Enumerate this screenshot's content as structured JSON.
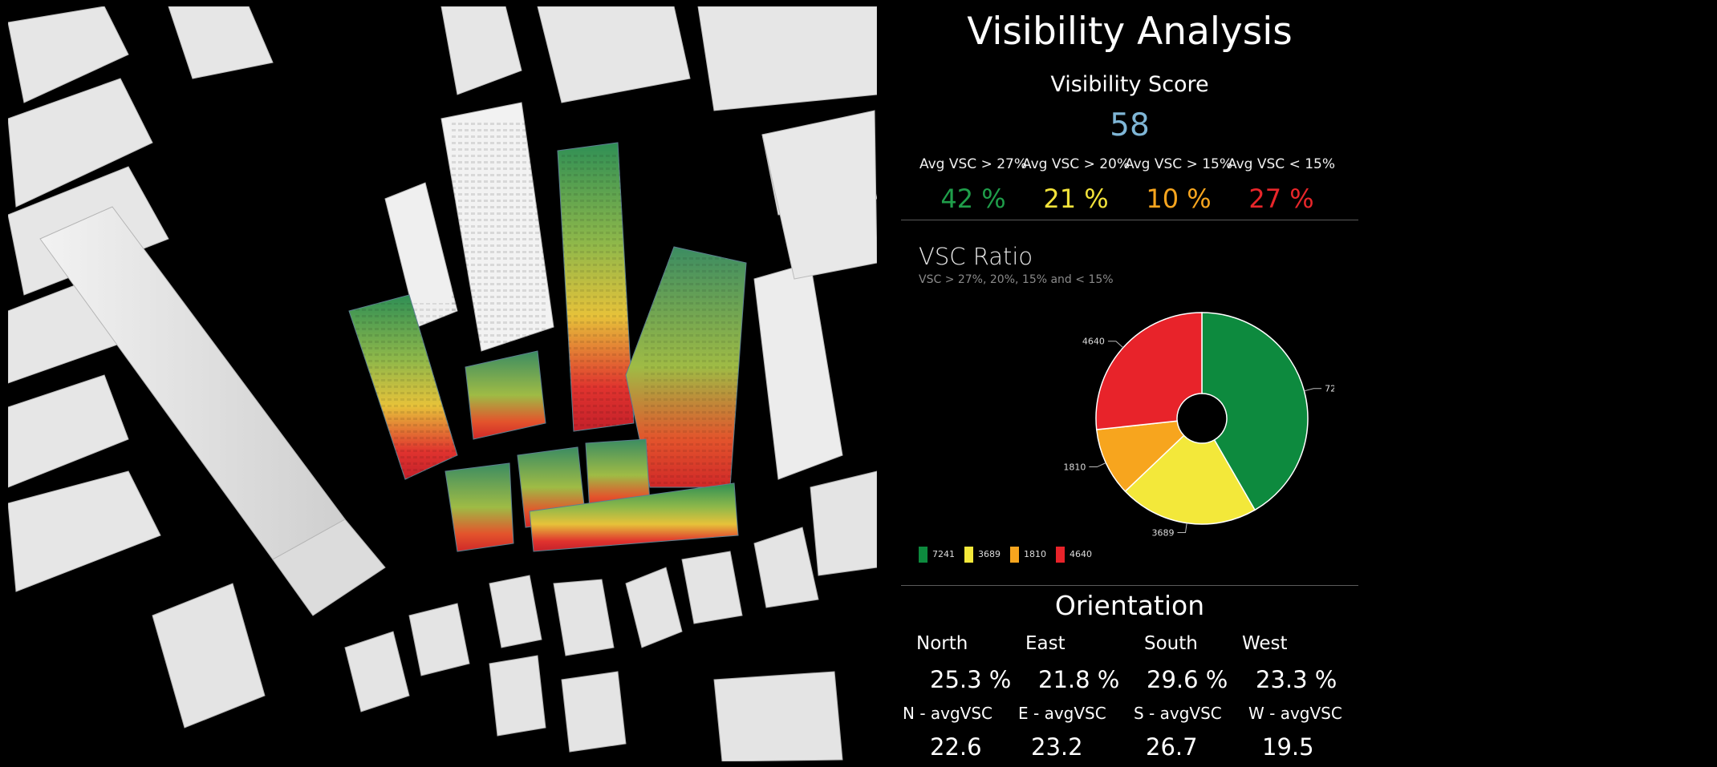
{
  "panel": {
    "title": "Visibility Analysis",
    "score_label": "Visibility Score",
    "score_value": "58",
    "categories": [
      {
        "label": "Avg VSC > 27%",
        "value": "42 %",
        "color": "#1f9e4a"
      },
      {
        "label": "Avg VSC > 20%",
        "value": "21 %",
        "color": "#f2e23a"
      },
      {
        "label": "Avg VSC > 15%",
        "value": "10 %",
        "color": "#f7a51e"
      },
      {
        "label": "Avg VSC < 15%",
        "value": "27 %",
        "color": "#e8262a"
      }
    ]
  },
  "chart_data": {
    "type": "pie",
    "title": "VSC Ratio",
    "subtitle": "VSC > 27%, 20%, 15% and < 15%",
    "donut": true,
    "legend_position": "bottom-left",
    "slices": [
      {
        "label": "7241",
        "value": 7241,
        "color": "#0d8a3e"
      },
      {
        "label": "3689",
        "value": 3689,
        "color": "#f3e83a"
      },
      {
        "label": "1810",
        "value": 1810,
        "color": "#f7a51e"
      },
      {
        "label": "4640",
        "value": 4640,
        "color": "#e8232a"
      }
    ]
  },
  "orientation": {
    "title": "Orientation",
    "directions": [
      {
        "label": "North",
        "percent": "25.3 %",
        "avg_label": "N - avgVSC",
        "avg_value": "22.6"
      },
      {
        "label": "East",
        "percent": "21.8 %",
        "avg_label": "E - avgVSC",
        "avg_value": "23.2"
      },
      {
        "label": "South",
        "percent": "29.6 %",
        "avg_label": "S - avgVSC",
        "avg_value": "26.7"
      },
      {
        "label": "West",
        "percent": "23.3 %",
        "avg_label": "W - avgVSC",
        "avg_value": "19.5"
      }
    ]
  }
}
